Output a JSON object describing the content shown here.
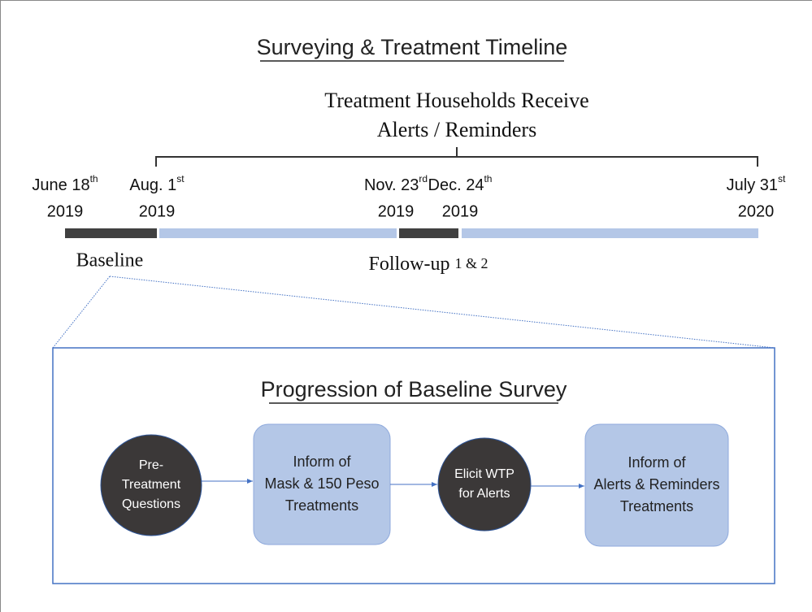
{
  "title": "Surveying & Treatment Timeline",
  "treatment_label": {
    "lines": [
      "Treatment Households Receive",
      "Alerts / Reminders"
    ]
  },
  "dates": [
    {
      "day": "June 18",
      "suffix": "th",
      "year": "2019"
    },
    {
      "day": "Aug. 1",
      "suffix": "st",
      "year": "2019"
    },
    {
      "day": "Nov. 23",
      "suffix": "rd",
      "year": "2019"
    },
    {
      "day": "Dec. 24",
      "suffix": "th",
      "year": "2019"
    },
    {
      "day": "July 31",
      "suffix": "st",
      "year": "2020"
    }
  ],
  "phases": {
    "baseline": "Baseline",
    "followup": "Follow-up",
    "followup_rounds": "1 & 2"
  },
  "survey": {
    "title": "Progression of Baseline Survey",
    "steps": [
      {
        "lines": [
          "Pre-",
          "Treatment",
          "Questions"
        ]
      },
      {
        "lines": [
          "Inform of",
          "Mask & 150 Peso",
          "Treatments"
        ]
      },
      {
        "lines": [
          "Elicit WTP",
          "for Alerts"
        ]
      },
      {
        "lines": [
          "Inform of",
          "Alerts & Reminders",
          "Treatments"
        ]
      }
    ]
  }
}
